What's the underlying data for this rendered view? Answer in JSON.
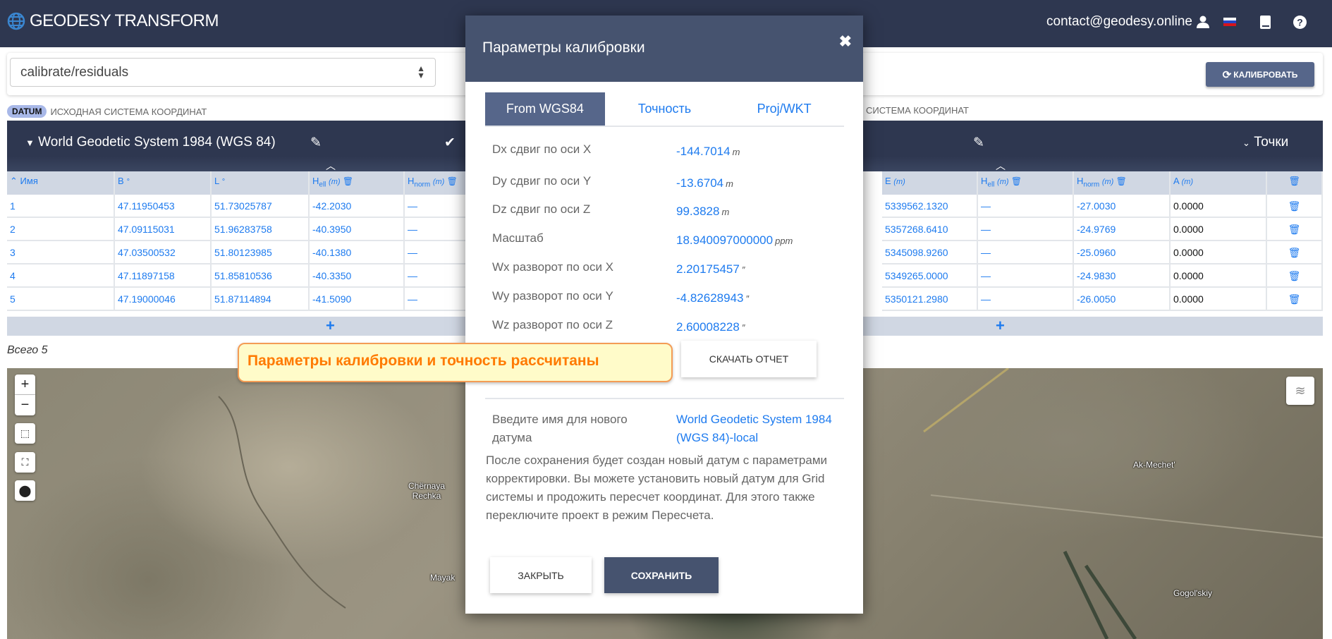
{
  "app": {
    "title": "GEODESY TRANSFORM",
    "user": "contact@geodesy.online",
    "icons": [
      "globe-icon",
      "user-icon",
      "russian-flag-icon",
      "book-icon",
      "help-icon"
    ]
  },
  "toolbar": {
    "mode_value": "calibrate/residuals",
    "calibrate_label": "КАЛИБРОВАТЬ"
  },
  "source": {
    "badge": "DATUM",
    "label": "ИСХОДНАЯ СИСТЕМА КООРДИНАТ",
    "datum_name": "World Geodetic System 1984 (WGS 84)",
    "columns": [
      "Имя",
      "B",
      "L",
      "H",
      "H"
    ],
    "col_subs": [
      "",
      "",
      "",
      "ell",
      "norm"
    ],
    "col_units": [
      "",
      "°",
      "°",
      "(m)",
      "(m)"
    ],
    "rows": [
      [
        "1",
        "47.11950453",
        "51.73025787",
        "-42.2030",
        "—"
      ],
      [
        "2",
        "47.09115031",
        "51.96283758",
        "-40.3950",
        "—"
      ],
      [
        "3",
        "47.03500532",
        "51.80123985",
        "-40.1380",
        "—"
      ],
      [
        "4",
        "47.11897158",
        "51.85810536",
        "-40.3350",
        "—"
      ],
      [
        "5",
        "47.19000046",
        "51.87114894",
        "-41.5090",
        "—"
      ]
    ]
  },
  "target": {
    "label_partial": "СИСТЕМА КООРДИНАТ",
    "points_label": "Точки",
    "columns": [
      "E",
      "H",
      "H",
      "A"
    ],
    "col_subs": [
      "",
      "ell",
      "norm",
      ""
    ],
    "col_units": [
      "(m)",
      "(m)",
      "(m)",
      "(m)"
    ],
    "rows": [
      [
        "5339562.1320",
        "—",
        "-27.0030",
        "0.0000"
      ],
      [
        "5357268.6410",
        "—",
        "-24.9769",
        "0.0000"
      ],
      [
        "5345098.9260",
        "—",
        "-25.0960",
        "0.0000"
      ],
      [
        "5349265.0000",
        "—",
        "-24.9830",
        "0.0000"
      ],
      [
        "5350121.2980",
        "—",
        "-26.0050",
        "0.0000"
      ]
    ]
  },
  "total": "Всего 5",
  "map": {
    "labels": [
      "Chërnaya Rechka",
      "Mayak",
      "Ak-Mechet'",
      "Gogol'skiy"
    ]
  },
  "modal": {
    "title": "Параметры калибровки",
    "tabs": [
      "From WGS84",
      "Точность",
      "Proj/WKT"
    ],
    "active_tab": 0,
    "params": [
      {
        "label": "Dx сдвиг по оси X",
        "value": "-144.7014",
        "unit": "m"
      },
      {
        "label": "Dy сдвиг по оси Y",
        "value": "-13.6704",
        "unit": "m"
      },
      {
        "label": "Dz сдвиг по оси Z",
        "value": "99.3828",
        "unit": "m"
      },
      {
        "label": "Масштаб",
        "value": "18.940097000000",
        "unit": "ppm"
      },
      {
        "label": "Wx разворот по оси X",
        "value": "2.20175457",
        "unit": "″"
      },
      {
        "label": "Wy разворот по оси Y",
        "value": "-4.82628943",
        "unit": "″"
      },
      {
        "label": "Wz разворот по оси Z",
        "value": "2.60008228",
        "unit": "″"
      }
    ],
    "download_label": "СКАЧАТЬ ОТЧЕТ",
    "name_label": "Введите имя для нового датума",
    "name_value": "World Geodetic System 1984 (WGS 84)-local",
    "info": "После сохранения будет создан новый датум с параметрами корректировки. Вы можете установить новый датум для Grid системы и продожить пересчет координат. Для этого также переключите проект в режим Пересчета.",
    "close_label": "ЗАКРЫТЬ",
    "save_label": "СОХРАНИТЬ"
  },
  "toast": "Параметры калибровки и точность рассчитаны"
}
